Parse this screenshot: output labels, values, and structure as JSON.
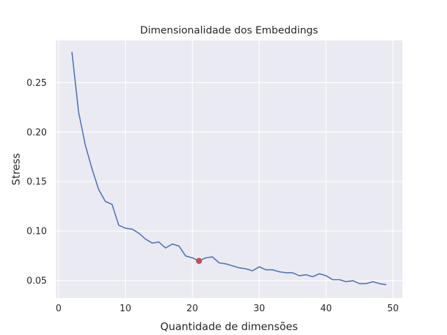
{
  "chart_data": {
    "type": "line",
    "title": "Dimensionalidade dos Embeddings",
    "xlabel": "Quantidade de dimensões",
    "ylabel": "Stress",
    "xlim": [
      -0.4,
      51.4
    ],
    "ylim": [
      0.0325,
      0.2925
    ],
    "xticks": [
      0,
      10,
      20,
      30,
      40,
      50
    ],
    "yticks": [
      0.05,
      0.1,
      0.15,
      0.2,
      0.25
    ],
    "ytick_labels": [
      "0.05",
      "0.10",
      "0.15",
      "0.20",
      "0.25"
    ],
    "grid": true,
    "background": "#eaeaf2",
    "line_color": "#4c72b0",
    "marker_color": "#c44e52",
    "series": [
      {
        "x": [
          2,
          3,
          4,
          5,
          6,
          7,
          8,
          9,
          10,
          11,
          12,
          13,
          14,
          15,
          16,
          17,
          18,
          19,
          20,
          21,
          22,
          23,
          24,
          25,
          26,
          27,
          28,
          29,
          30,
          31,
          32,
          33,
          34,
          35,
          36,
          37,
          38,
          39,
          40,
          41,
          42,
          43,
          44,
          45,
          46,
          47,
          48,
          49
        ],
        "y": [
          0.281,
          0.22,
          0.187,
          0.163,
          0.142,
          0.13,
          0.127,
          0.106,
          0.103,
          0.102,
          0.098,
          0.092,
          0.088,
          0.089,
          0.083,
          0.087,
          0.085,
          0.075,
          0.073,
          0.07,
          0.073,
          0.074,
          0.068,
          0.067,
          0.065,
          0.063,
          0.062,
          0.06,
          0.064,
          0.061,
          0.061,
          0.059,
          0.058,
          0.058,
          0.055,
          0.056,
          0.054,
          0.057,
          0.055,
          0.051,
          0.051,
          0.049,
          0.05,
          0.047,
          0.047,
          0.049,
          0.047,
          0.046
        ]
      }
    ],
    "highlight_point": {
      "x": 21,
      "y": 0.07
    }
  }
}
